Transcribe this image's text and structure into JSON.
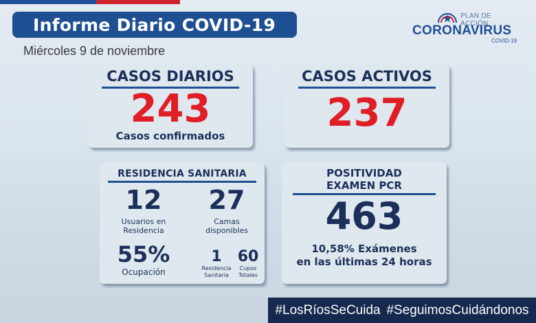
{
  "header": {
    "title": "Informe Diario COVID-19",
    "date": "Miércoles 9 de noviembre"
  },
  "logo": {
    "plan": "PLAN DE ACCIÓN",
    "main": "CORONAVIRUS",
    "sub": "COVID-19",
    "icon": "government-star-icon"
  },
  "casos_diarios": {
    "label": "CASOS DIARIOS",
    "value": "243",
    "caption": "Casos confirmados"
  },
  "casos_activos": {
    "label": "CASOS ACTIVOS",
    "value": "237"
  },
  "residencia": {
    "label": "RESIDENCIA SANITARIA",
    "usuarios_value": "12",
    "usuarios_line1": "Usuarios en",
    "usuarios_line2": "Residencia",
    "camas_value": "27",
    "camas_line1": "Camas",
    "camas_line2": "disponibles",
    "ocupacion_value": "55%",
    "ocupacion_label": "Ocupación",
    "residencias_value": "1",
    "residencias_line1": "Residencia",
    "residencias_line2": "Sanitaria",
    "cupos_value": "60",
    "cupos_line1": "Cupos",
    "cupos_line2": "Totales"
  },
  "positividad": {
    "label_line1": "POSITIVIDAD",
    "label_line2": "EXAMEN PCR",
    "value": "463",
    "caption_line1": "10,58% Exámenes",
    "caption_line2": "en las últimas 24 horas"
  },
  "hashtags": {
    "tag1": "#LosRíosSeCuida",
    "tag2": "#SeguimosCuidándonos"
  },
  "colors": {
    "navy": "#1b2f5a",
    "brand_blue": "#1e4f93",
    "red": "#e01e26",
    "card": "#dfe8ee",
    "hashbar": "#15294f"
  }
}
